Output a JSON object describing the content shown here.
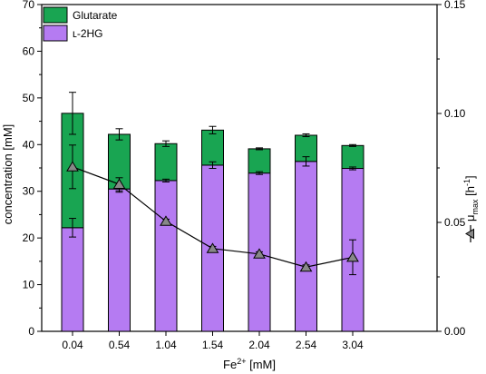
{
  "chart_data": {
    "type": "bar",
    "categories": [
      "0.04",
      "0.54",
      "1.04",
      "1.54",
      "2.04",
      "2.54",
      "3.04"
    ],
    "series": [
      {
        "name": "ʟ-2HG",
        "color": "#b57bf2",
        "values": [
          22.2,
          30.5,
          32.3,
          35.6,
          33.9,
          36.4,
          34.9
        ],
        "errors": [
          2.0,
          0.7,
          0.3,
          0.7,
          0.3,
          1.0,
          0.3
        ]
      },
      {
        "name": "Glutarate",
        "color": "#19a552",
        "values": [
          24.5,
          11.7,
          7.9,
          7.5,
          5.2,
          5.6,
          4.9
        ],
        "errors": [
          4.5,
          1.2,
          0.6,
          0.8,
          0.2,
          0.3,
          0.2
        ]
      }
    ],
    "secondary_series": {
      "name": "μ max",
      "marker": "triangle",
      "color": "#888888",
      "values": [
        0.0755,
        0.0675,
        0.0505,
        0.038,
        0.0355,
        0.0295,
        0.034
      ],
      "errors": [
        0.01,
        0.003,
        0.001,
        0.001,
        0.001,
        0.001,
        0.008
      ]
    },
    "xlabel_main": "Fe",
    "xlabel_sup": "2+",
    "xlabel_unit": " [mM]",
    "ylabel": "concentration [mM]",
    "y2label_main": "μ",
    "y2label_sub": "max",
    "y2label_unit": " [h",
    "y2label_sup": "-1",
    "y2label_end": "]",
    "ylim": [
      0,
      70
    ],
    "yticks": [
      "0",
      "10",
      "20",
      "30",
      "40",
      "50",
      "60",
      "70"
    ],
    "y2lim": [
      0,
      0.15
    ],
    "y2ticks": [
      "0.00",
      "0.05",
      "0.10",
      "0.15"
    ],
    "legend_position": "top-left",
    "grid": false
  }
}
